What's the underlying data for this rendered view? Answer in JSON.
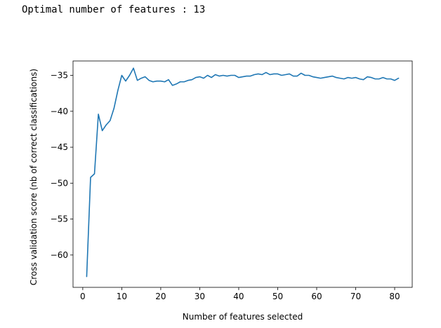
{
  "output": {
    "text": "Optimal number of features : 13"
  },
  "chart_data": {
    "type": "line",
    "title": "",
    "xlabel": "Number of features selected",
    "ylabel": "Cross validation score (nb of correct classifications)",
    "xlim": [
      -2.5,
      84.5
    ],
    "ylim": [
      -64.5,
      -33.0
    ],
    "xticks": [
      0,
      10,
      20,
      30,
      40,
      50,
      60,
      70,
      80
    ],
    "yticks": [
      -35,
      -40,
      -45,
      -50,
      -55,
      -60
    ],
    "ytick_labels": [
      "−35",
      "−40",
      "−45",
      "−50",
      "−55",
      "−60"
    ],
    "grid": false,
    "line_color": "#1f77b4",
    "series": [
      {
        "x": [
          1,
          2,
          3,
          4,
          5,
          6,
          7,
          8,
          9,
          10,
          11,
          12,
          13,
          14,
          15,
          16,
          17,
          18,
          19,
          20,
          21,
          22,
          23,
          24,
          25,
          26,
          27,
          28,
          29,
          30,
          31,
          32,
          33,
          34,
          35,
          36,
          37,
          38,
          39,
          40,
          41,
          42,
          43,
          44,
          45,
          46,
          47,
          48,
          49,
          50,
          51,
          52,
          53,
          54,
          55,
          56,
          57,
          58,
          59,
          60,
          61,
          62,
          63,
          64,
          65,
          66,
          67,
          68,
          69,
          70,
          71,
          72,
          73,
          74,
          75,
          76,
          77,
          78,
          79,
          80,
          81
        ],
        "values": [
          -63.0,
          -49.2,
          -48.7,
          -40.4,
          -42.7,
          -41.9,
          -41.3,
          -39.6,
          -37.1,
          -35.0,
          -35.8,
          -35.0,
          -34.0,
          -35.7,
          -35.4,
          -35.2,
          -35.7,
          -35.9,
          -35.8,
          -35.8,
          -35.9,
          -35.6,
          -36.4,
          -36.2,
          -35.9,
          -35.9,
          -35.7,
          -35.6,
          -35.3,
          -35.2,
          -35.4,
          -35.0,
          -35.3,
          -34.9,
          -35.1,
          -35.0,
          -35.1,
          -35.0,
          -35.0,
          -35.3,
          -35.2,
          -35.1,
          -35.1,
          -34.9,
          -34.8,
          -34.9,
          -34.6,
          -34.9,
          -34.8,
          -34.8,
          -35.0,
          -34.9,
          -34.8,
          -35.1,
          -35.1,
          -34.7,
          -35.0,
          -35.0,
          -35.2,
          -35.3,
          -35.4,
          -35.3,
          -35.2,
          -35.1,
          -35.3,
          -35.4,
          -35.5,
          -35.3,
          -35.4,
          -35.3,
          -35.5,
          -35.6,
          -35.2,
          -35.3,
          -35.5,
          -35.5,
          -35.3,
          -35.5,
          -35.5,
          -35.7,
          -35.4
        ]
      }
    ]
  }
}
